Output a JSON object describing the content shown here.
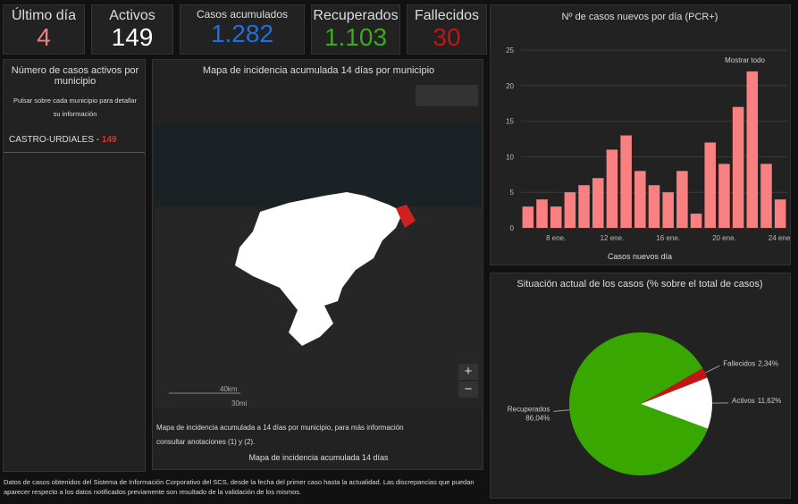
{
  "cards": [
    {
      "title": "Último día",
      "value": "4",
      "color": "#f08080"
    },
    {
      "title": "Activos",
      "value": "149",
      "color": "#ffffff"
    },
    {
      "title": "Casos acumulados",
      "value": "1.282",
      "color": "#1f6fe0"
    },
    {
      "title": "Recuperados",
      "value": "1.103",
      "color": "#3aaa18"
    },
    {
      "title": "Fallecidos",
      "value": "30",
      "color": "#c41414"
    }
  ],
  "list_panel": {
    "title": "Número de casos activos por municipio",
    "subtitle": "Pulsar sobre cada municipio para detallar su información",
    "items": [
      {
        "name": "CASTRO-URDIALES",
        "separator": "-",
        "value": "149"
      }
    ]
  },
  "map_panel": {
    "title": "Mapa de incidencia acumulada 14 días por municipio",
    "scale_km": "40km",
    "scale_mi": "30mi",
    "caption": "Mapa de incidencia acumulada a 14 días por municipio, para más información consultar anotaciones (1) y (2).",
    "footer": "Mapa de incidencia acumulada 14 días",
    "zoom_in": "+",
    "zoom_out": "−"
  },
  "footer": "Datos de casos obtenidos del Sistema de Información Corporativo del SCS, desde la fecha del primer caso hasta la actualidad. Las discrepancias que puedan aparecer respecto a los datos notificados previamente son resultado de la validación de los mismos.",
  "chart_data": [
    {
      "type": "bar",
      "title": "Nº de casos nuevos por día (PCR+)",
      "x_label": "Casos nuevos día",
      "zoom_label": "Mostrar todo",
      "categories": [
        null,
        null,
        "8 ene.",
        null,
        null,
        null,
        "12 ene.",
        null,
        null,
        null,
        "16 ene.",
        null,
        null,
        null,
        "20 ene.",
        null,
        null,
        null,
        "24 ene."
      ],
      "values": [
        3,
        4,
        3,
        5,
        6,
        7,
        11,
        13,
        8,
        6,
        5,
        8,
        2,
        12,
        9,
        17,
        22,
        9,
        4
      ],
      "color": "#f88080",
      "ylim": [
        0,
        25
      ],
      "yticks": [
        0,
        5,
        10,
        15,
        20,
        25
      ],
      "grid": true
    },
    {
      "type": "pie",
      "title": "Situación actual de los casos (% sobre el total de casos)",
      "categories": [
        "Fallecidos",
        "Activos",
        "Recuperados"
      ],
      "values": [
        2.34,
        11.62,
        86.04
      ],
      "value_labels": [
        "2,34%",
        "11,62%",
        "86,04%"
      ],
      "colors": [
        "#c41414",
        "#ffffff",
        "#38a800"
      ]
    }
  ]
}
